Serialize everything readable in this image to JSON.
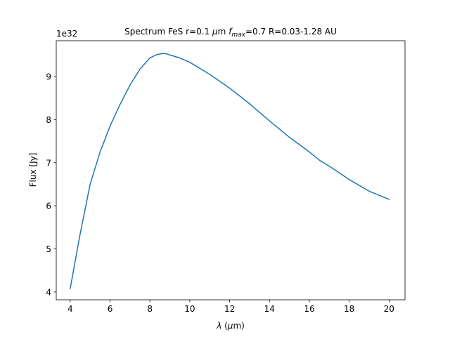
{
  "chart_data": {
    "type": "line",
    "title": {
      "prefix": "Spectrum FeS r=0.1 ",
      "mu": "μ",
      "after_mu": "m ",
      "f": "f",
      "f_sub": "max",
      "suffix": "=0.7 R=0.03-1.28 AU"
    },
    "xlabel": {
      "lambda": "λ",
      "rest": " (",
      "mu": "μ",
      "unit_rest": "m)"
    },
    "ylabel": "Flux [Jy]",
    "y_offset_text": "1e32",
    "xlim": [
      3.3,
      20.8
    ],
    "ylim": [
      3.82,
      9.83
    ],
    "xticks": [
      4,
      6,
      8,
      10,
      12,
      14,
      16,
      18,
      20
    ],
    "xtick_labels": [
      "4",
      "6",
      "8",
      "10",
      "12",
      "14",
      "16",
      "18",
      "20"
    ],
    "yticks": [
      4,
      5,
      6,
      7,
      8,
      9
    ],
    "ytick_labels": [
      "4",
      "5",
      "6",
      "7",
      "8",
      "9"
    ],
    "grid": false,
    "color": "#1f77b4",
    "series": [
      {
        "x": [
          4.0,
          4.5,
          5.0,
          5.5,
          6.0,
          6.5,
          7.0,
          7.5,
          8.0,
          8.3,
          8.6,
          8.8,
          9.0,
          9.5,
          10.0,
          11.0,
          12.0,
          13.0,
          14.0,
          15.0,
          16.0,
          16.5,
          17.0,
          18.0,
          19.0,
          20.0
        ],
        "y": [
          4.08,
          5.35,
          6.5,
          7.25,
          7.85,
          8.35,
          8.8,
          9.17,
          9.43,
          9.5,
          9.53,
          9.53,
          9.5,
          9.43,
          9.33,
          9.05,
          8.73,
          8.37,
          7.97,
          7.59,
          7.25,
          7.06,
          6.92,
          6.61,
          6.34,
          6.15
        ]
      }
    ]
  }
}
